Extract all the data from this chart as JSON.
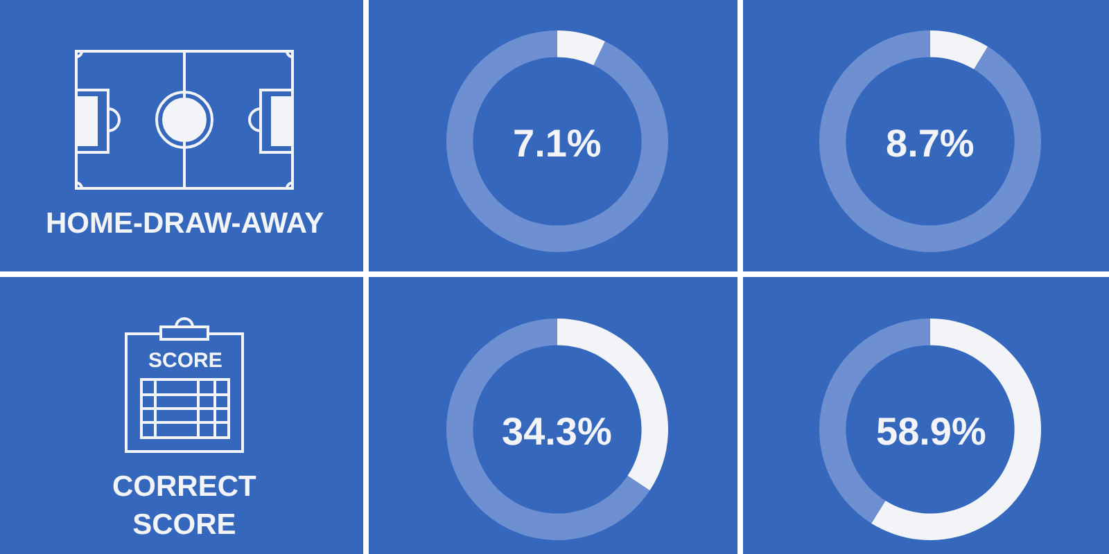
{
  "chart_data": [
    {
      "type": "other",
      "title": "HOME-DRAW-AWAY"
    },
    {
      "type": "donut",
      "categories": [
        null,
        null
      ],
      "values": [
        7.1,
        92.9
      ],
      "colors": [
        "#f3f4f7",
        "#6e8fd2"
      ],
      "annotations": [
        "7.1%"
      ]
    },
    {
      "type": "donut",
      "categories": [
        null,
        null
      ],
      "values": [
        8.7,
        91.3
      ],
      "colors": [
        "#f3f4f7",
        "#6e8fd2"
      ],
      "annotations": [
        "8.7%"
      ]
    },
    {
      "type": "other",
      "title": "CORRECT\nSCORE",
      "annotations": [
        "SCORE"
      ]
    },
    {
      "type": "donut",
      "categories": [
        null,
        null
      ],
      "values": [
        34.3,
        65.7
      ],
      "colors": [
        "#f3f4f7",
        "#6e8fd2"
      ],
      "annotations": [
        "34.3%"
      ]
    },
    {
      "type": "donut",
      "categories": [
        null,
        null
      ],
      "values": [
        58.9,
        41.1
      ],
      "colors": [
        "#f3f4f7",
        "#6e8fd2"
      ],
      "annotations": [
        "58.9%"
      ]
    }
  ]
}
